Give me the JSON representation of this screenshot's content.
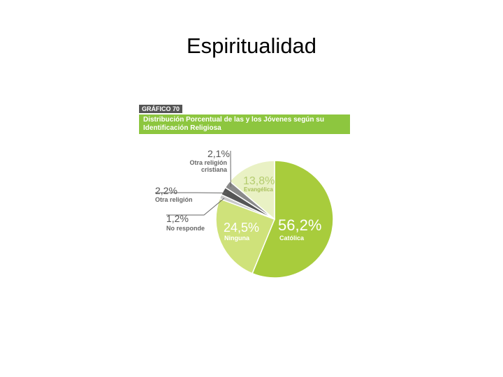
{
  "slide": {
    "title": "Espiritualidad"
  },
  "chart_data": {
    "type": "pie",
    "badge": "GRÁFICO 70",
    "title": "Distribución Porcentual de las y los Jóvenes según su Identificación Religiosa",
    "slices": [
      {
        "label": "Católica",
        "value": 56.2,
        "text": "56,2%",
        "color": "#a8cc3c"
      },
      {
        "label": "Ninguna",
        "value": 24.5,
        "text": "24,5%",
        "color": "#cfe27a"
      },
      {
        "label": "No responde",
        "value": 1.2,
        "text": "1,2%",
        "color": "#c8c8c8"
      },
      {
        "label": "Otra religión",
        "value": 2.2,
        "text": "2,2%",
        "color": "#555555"
      },
      {
        "label": "Otra religión cristiana",
        "value": 2.1,
        "text": "2,1%",
        "color": "#8a8a8a"
      },
      {
        "label": "Evangélica",
        "value": 13.8,
        "text": "13,8%",
        "color": "#e9f1c4"
      }
    ],
    "label_lines": {
      "otra_cristiana": [
        "Otra religión",
        "cristiana"
      ]
    }
  }
}
